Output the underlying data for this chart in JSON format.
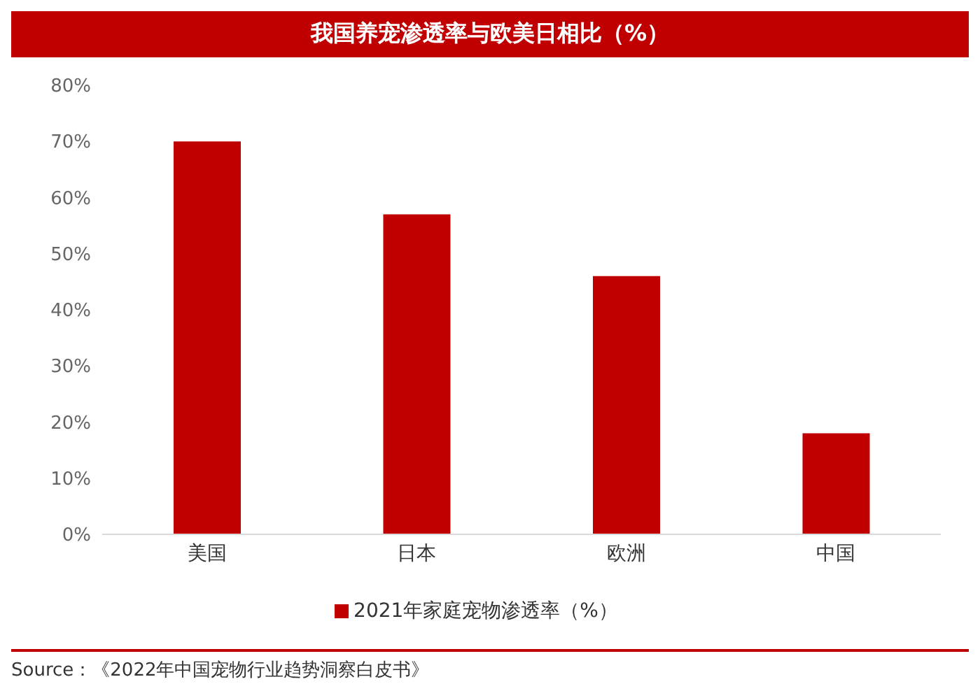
{
  "chart_data": {
    "type": "bar",
    "title": "我国养宠渗透率与欧美日相比（%）",
    "categories": [
      "美国",
      "日本",
      "欧洲",
      "中国"
    ],
    "series": [
      {
        "name": "2021年家庭宠物渗透率（%）",
        "color": "#c00000",
        "values": [
          70,
          57,
          46,
          18
        ]
      }
    ],
    "ylim": [
      0,
      80
    ],
    "yticks": [
      {
        "value": 0,
        "label": "0%"
      },
      {
        "value": 10,
        "label": "10%"
      },
      {
        "value": 20,
        "label": "20%"
      },
      {
        "value": 30,
        "label": "30%"
      },
      {
        "value": 40,
        "label": "40%"
      },
      {
        "value": 50,
        "label": "50%"
      },
      {
        "value": 60,
        "label": "60%"
      },
      {
        "value": 70,
        "label": "70%"
      },
      {
        "value": 80,
        "label": "80%"
      }
    ],
    "grid": false,
    "legend": "bottom",
    "annotations": [
      "Source：《2022年中国宠物行业趋势洞察白皮书》"
    ]
  }
}
